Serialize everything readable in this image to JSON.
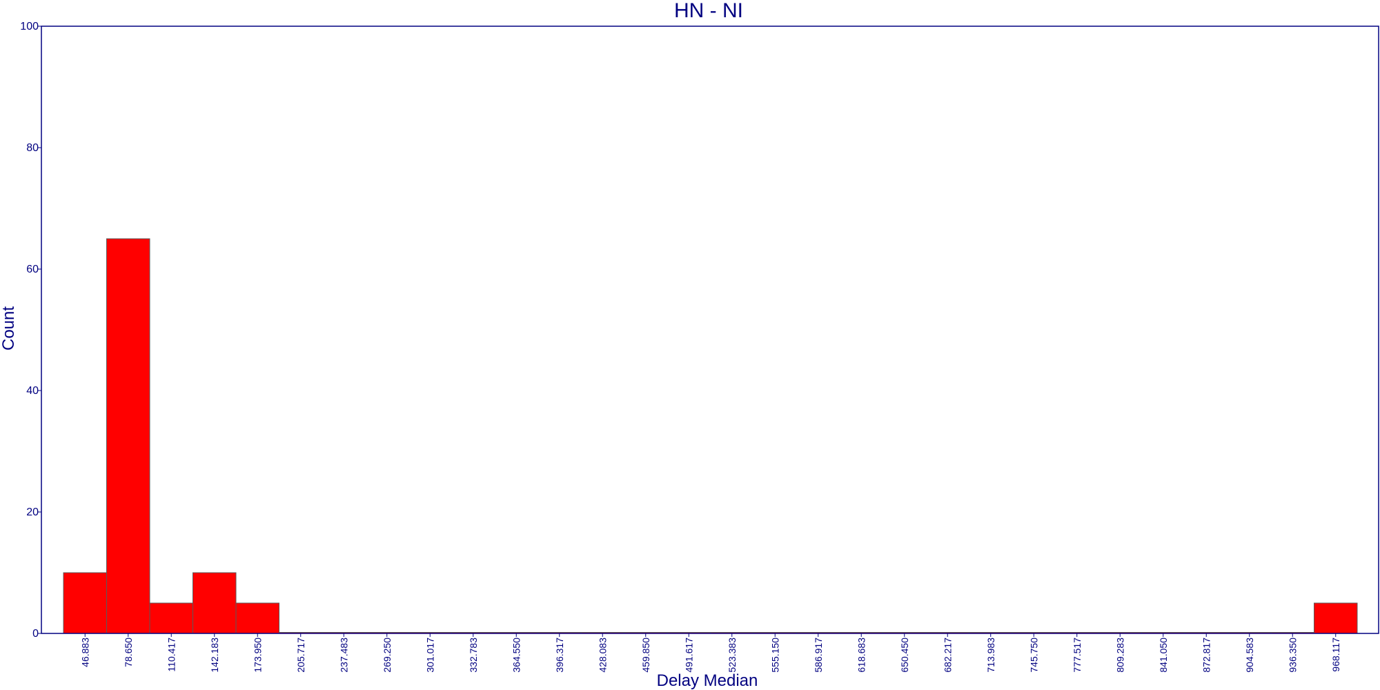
{
  "chart_data": {
    "type": "bar",
    "title": "HN - NI",
    "xlabel": "Delay Median",
    "ylabel": "Count",
    "ylim": [
      0,
      100
    ],
    "yticks": [
      "0",
      "20",
      "40",
      "60",
      "80",
      "100"
    ],
    "categories": [
      "46.883",
      "78.650",
      "110.417",
      "142.183",
      "173.950",
      "205.717",
      "237.483",
      "269.250",
      "301.017",
      "332.783",
      "364.550",
      "396.317",
      "428.083",
      "459.850",
      "491.617",
      "523.383",
      "555.150",
      "586.917",
      "618.683",
      "650.450",
      "682.217",
      "713.983",
      "745.750",
      "777.517",
      "809.283",
      "841.050",
      "872.817",
      "904.583",
      "936.350",
      "968.117"
    ],
    "values": [
      10,
      65,
      5,
      10,
      5,
      0,
      0,
      0,
      0,
      0,
      0,
      0,
      0,
      0,
      0,
      0,
      0,
      0,
      0,
      0,
      0,
      0,
      0,
      0,
      0,
      0,
      0,
      0,
      0,
      5
    ],
    "bar_color": "#ff0000",
    "axis_color": "#000080",
    "grid": false
  }
}
